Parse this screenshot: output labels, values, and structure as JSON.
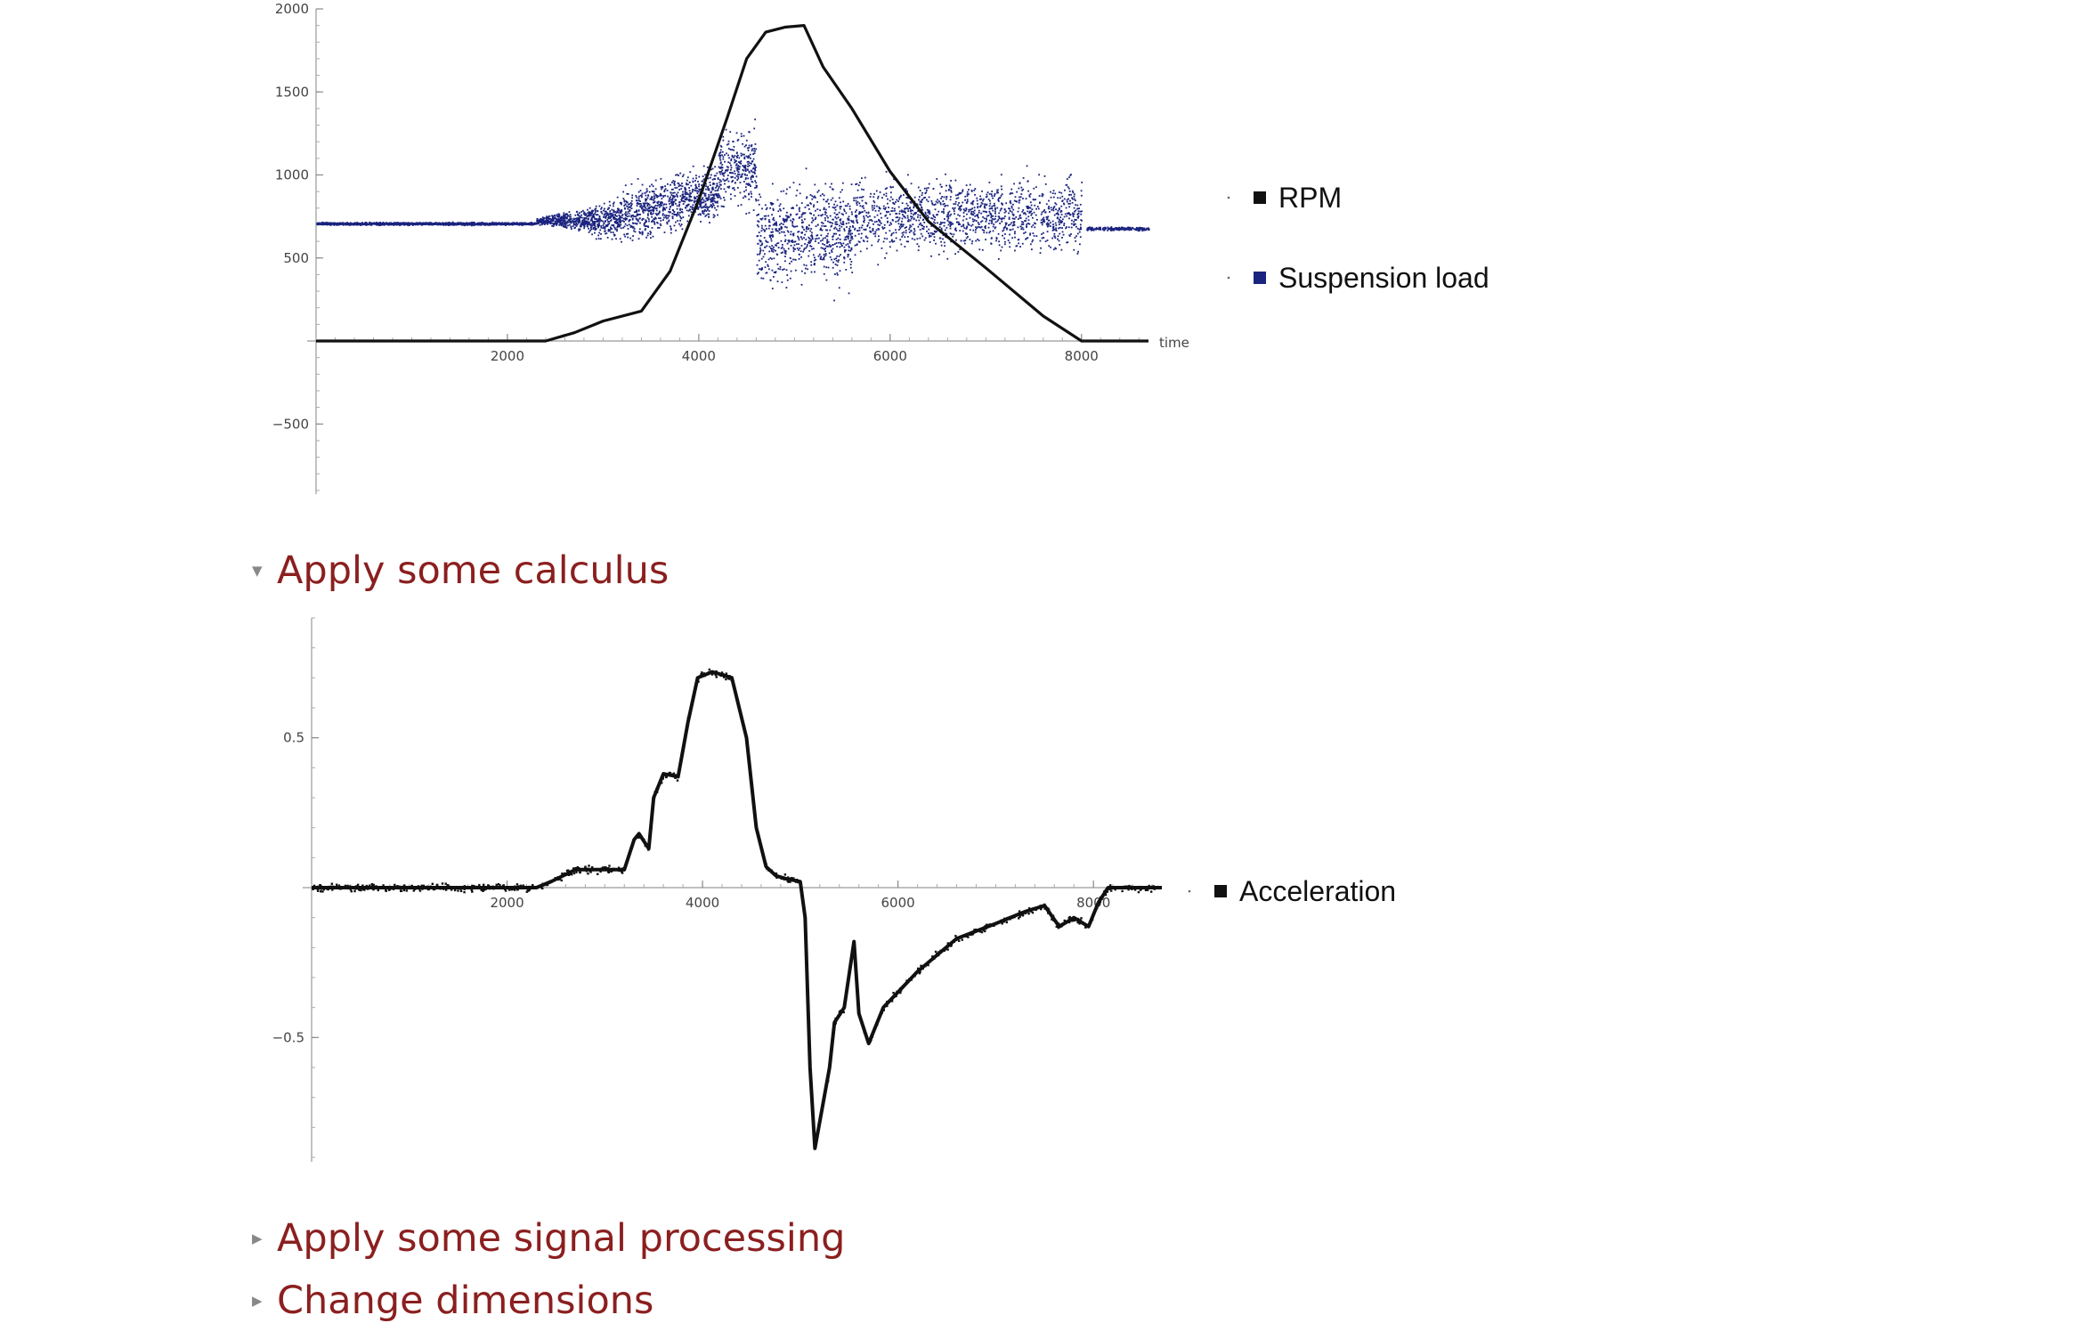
{
  "colors": {
    "rpm": "#111111",
    "suspension": "#1a237e",
    "acceleration": "#111111",
    "section_title": "#8b1f1f"
  },
  "sections": [
    {
      "label": "Apply some calculus",
      "expanded": true,
      "triangle_icon": "triangle-down-icon"
    },
    {
      "label": "Apply some signal processing",
      "expanded": false,
      "triangle_icon": "triangle-right-icon"
    },
    {
      "label": "Change dimensions",
      "expanded": false,
      "triangle_icon": "triangle-right-icon"
    }
  ],
  "chart_data": [
    {
      "type": "line",
      "xlabel": "time",
      "ylabel": "",
      "xlim": [
        0,
        8700
      ],
      "ylim": [
        -900,
        2000
      ],
      "x_ticks": [
        2000,
        4000,
        6000,
        8000
      ],
      "y_ticks": [
        -500,
        500,
        1000,
        1500,
        2000
      ],
      "legend_position": "right",
      "legend": [
        "RPM",
        "Suspension load"
      ],
      "series": [
        {
          "name": "RPM",
          "style": "line",
          "x": [
            0,
            2400,
            2700,
            3000,
            3400,
            3700,
            4000,
            4300,
            4500,
            4700,
            4900,
            5100,
            5300,
            5600,
            6000,
            6400,
            7000,
            7600,
            8000,
            8700
          ],
          "y": [
            0,
            0,
            50,
            120,
            180,
            420,
            850,
            1350,
            1700,
            1860,
            1890,
            1900,
            1650,
            1400,
            1020,
            720,
            440,
            150,
            0,
            0
          ]
        },
        {
          "name": "Suspension load",
          "style": "scatter",
          "segments": [
            {
              "x_from": 0,
              "x_to": 2300,
              "center": 710,
              "spread": 8,
              "count": 1400
            },
            {
              "x_from": 2300,
              "x_to": 3200,
              "center": 730,
              "spread_from": 20,
              "spread_to": 120,
              "count": 700
            },
            {
              "x_from": 3200,
              "x_to": 4200,
              "center_from": 760,
              "center_to": 900,
              "spread": 170,
              "count": 800
            },
            {
              "x_from": 4200,
              "x_to": 4600,
              "center": 1050,
              "spread": 250,
              "count": 300
            },
            {
              "x_from": 4600,
              "x_to": 5600,
              "center": 650,
              "spread": 320,
              "count": 700
            },
            {
              "x_from": 5600,
              "x_to": 8000,
              "center": 760,
              "spread": 230,
              "count": 1300
            },
            {
              "x_from": 8050,
              "x_to": 8700,
              "center": 680,
              "spread": 10,
              "count": 200
            }
          ]
        }
      ]
    },
    {
      "type": "line",
      "xlabel": "",
      "ylabel": "",
      "xlim": [
        0,
        8700
      ],
      "ylim": [
        -0.9,
        0.9
      ],
      "x_ticks": [
        2000,
        4000,
        6000,
        8000
      ],
      "y_ticks": [
        -0.5,
        0.5
      ],
      "legend_position": "right",
      "legend": [
        "Acceleration"
      ],
      "series": [
        {
          "name": "Acceleration",
          "style": "dense-points",
          "x": [
            0,
            2300,
            2450,
            2700,
            3200,
            3300,
            3350,
            3450,
            3500,
            3600,
            3750,
            3850,
            3950,
            4100,
            4300,
            4450,
            4550,
            4650,
            4750,
            4850,
            5000,
            5050,
            5100,
            5150,
            5200,
            5300,
            5350,
            5450,
            5550,
            5600,
            5700,
            5850,
            6200,
            6600,
            7000,
            7300,
            7500,
            7650,
            7800,
            7950,
            8050,
            8150,
            8700
          ],
          "y": [
            0,
            0,
            0.02,
            0.06,
            0.06,
            0.16,
            0.18,
            0.13,
            0.3,
            0.38,
            0.37,
            0.55,
            0.7,
            0.72,
            0.7,
            0.5,
            0.2,
            0.07,
            0.04,
            0.03,
            0.02,
            -0.1,
            -0.6,
            -0.87,
            -0.78,
            -0.6,
            -0.45,
            -0.4,
            -0.18,
            -0.42,
            -0.52,
            -0.4,
            -0.28,
            -0.17,
            -0.12,
            -0.08,
            -0.06,
            -0.13,
            -0.1,
            -0.13,
            -0.05,
            0,
            0
          ]
        }
      ]
    }
  ]
}
